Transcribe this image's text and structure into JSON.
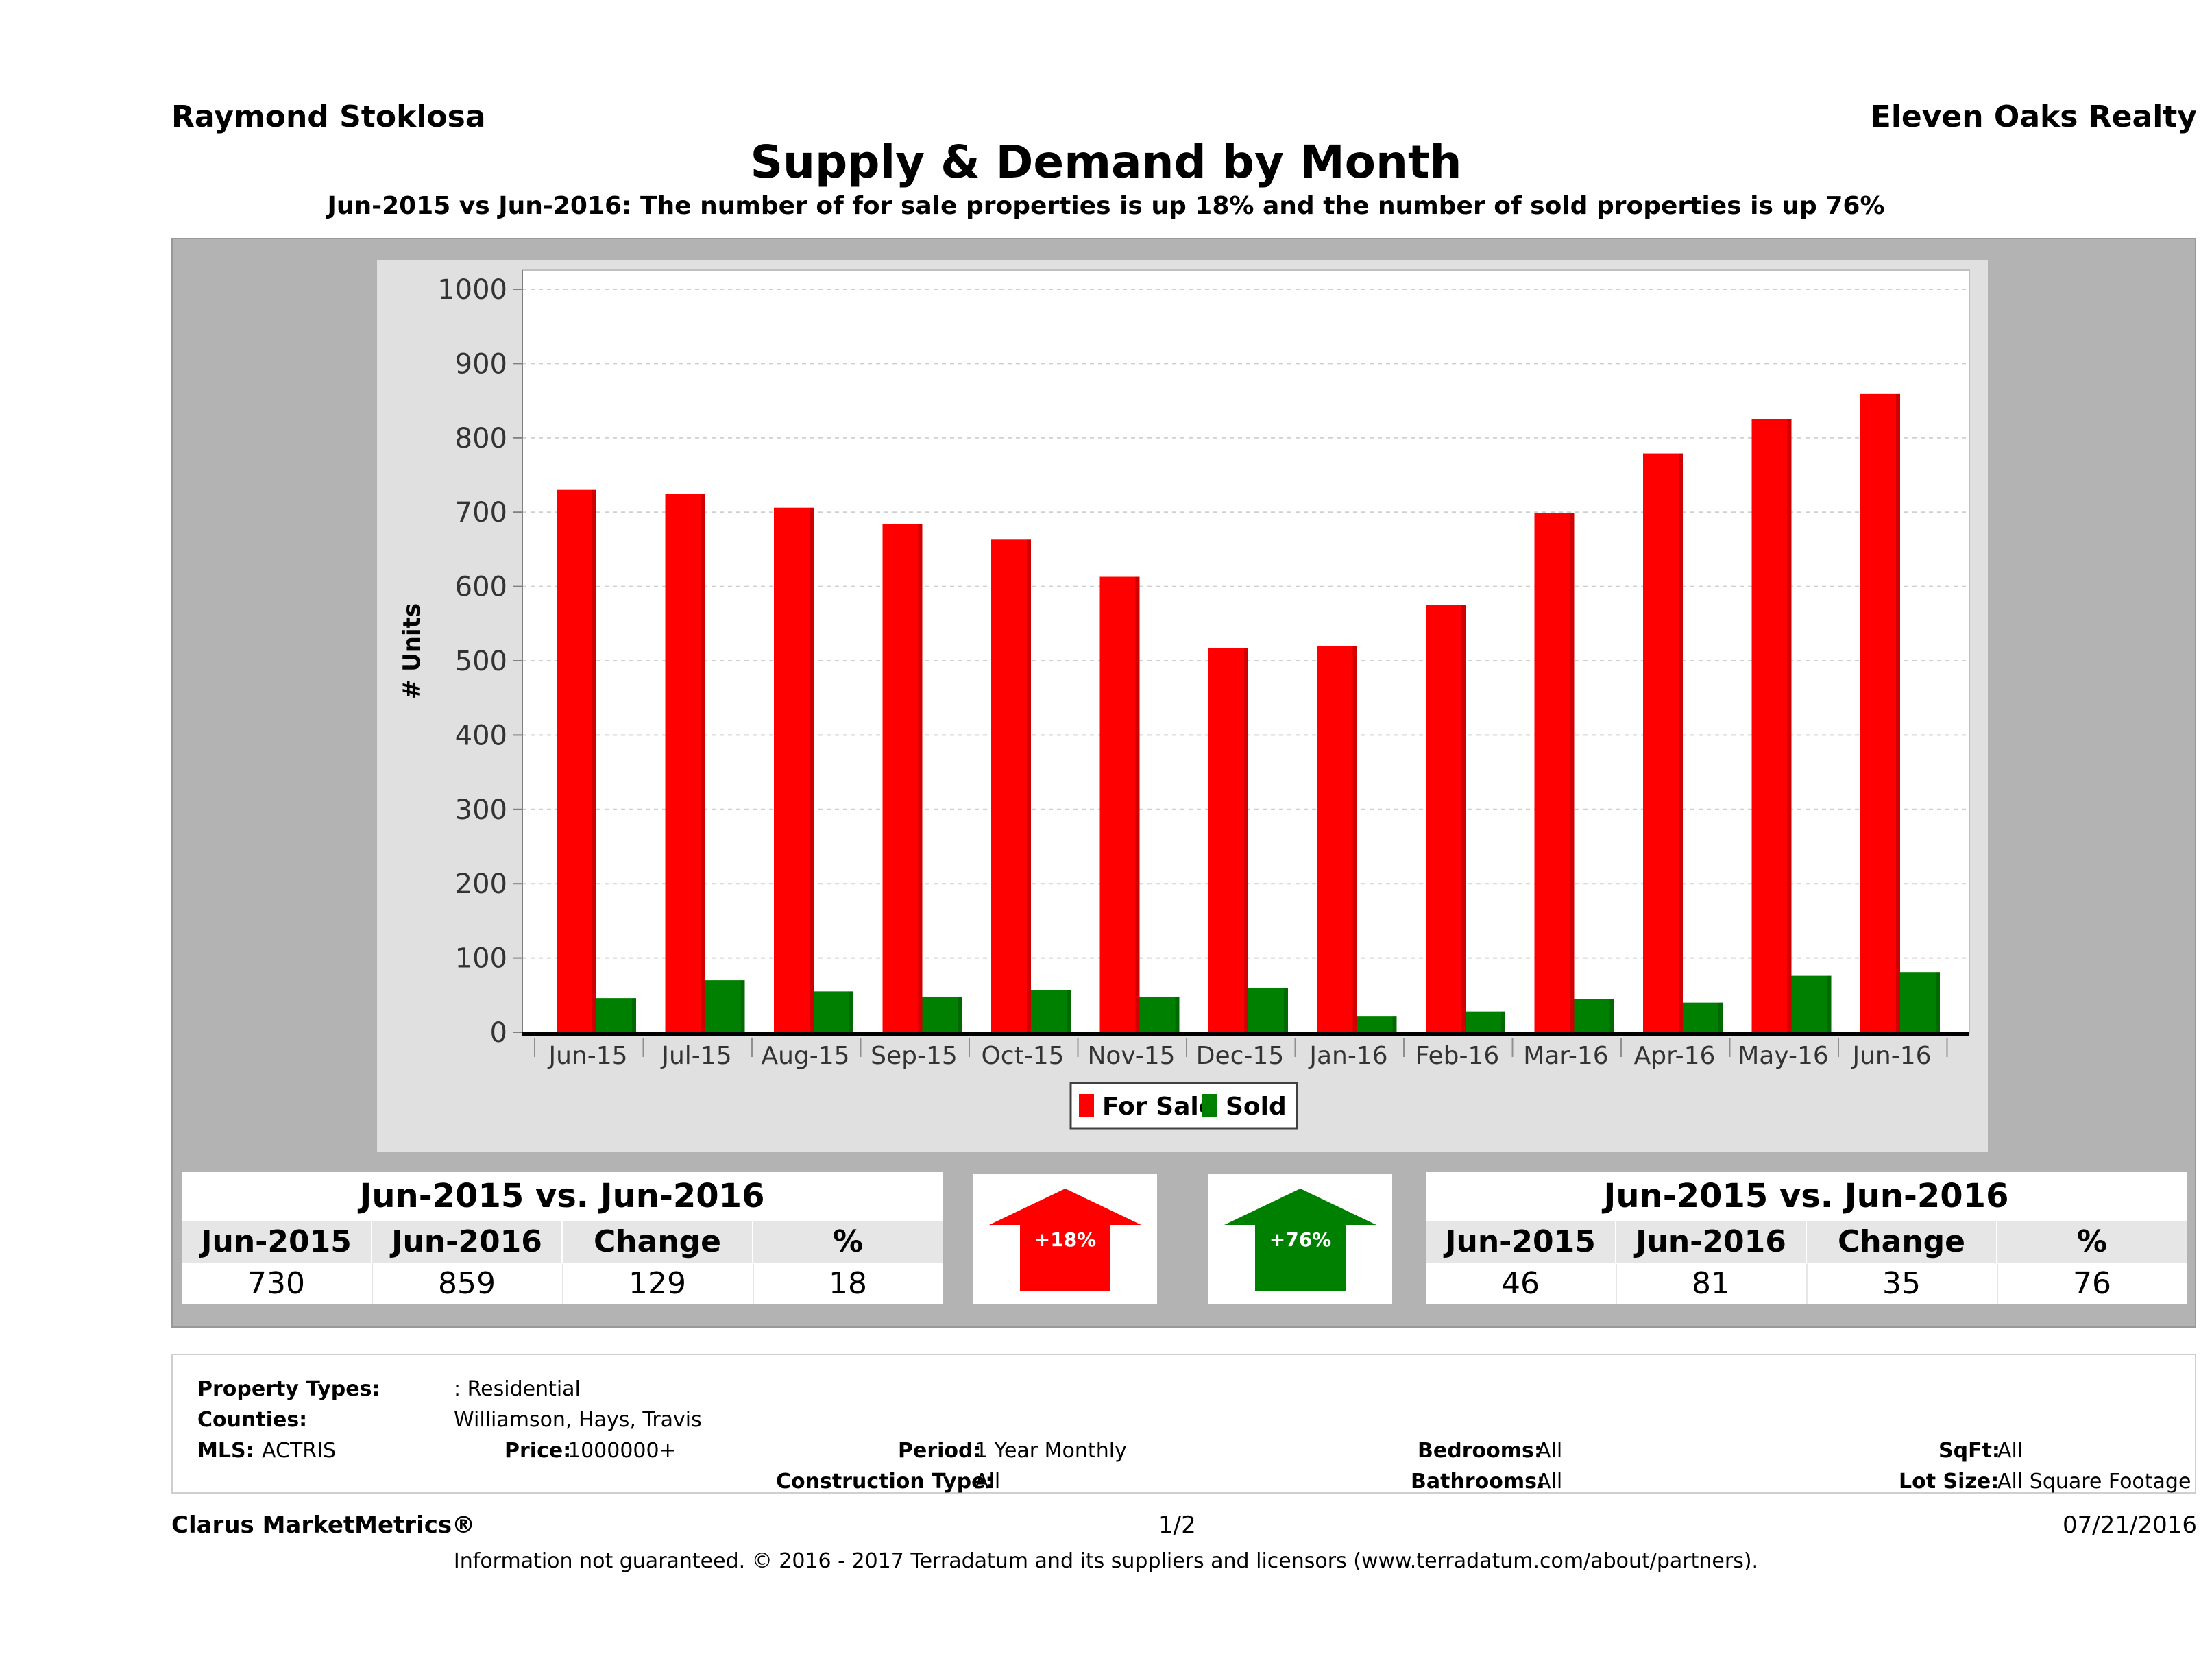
{
  "header": {
    "agent": "Raymond Stoklosa",
    "brokerage": "Eleven Oaks Realty",
    "title": "Supply & Demand by Month",
    "subtitle": "Jun-2015 vs Jun-2016: The number of for sale properties is up 18% and the number of sold properties is up 76%"
  },
  "chart_data": {
    "type": "bar",
    "title": "Supply & Demand by Month",
    "ylabel": "# Units",
    "ylim": [
      0,
      1000
    ],
    "yticks": [
      0,
      100,
      200,
      300,
      400,
      500,
      600,
      700,
      800,
      900,
      1000
    ],
    "grid": true,
    "legend_position": "bottom",
    "categories": [
      "Jun-15",
      "Jul-15",
      "Aug-15",
      "Sep-15",
      "Oct-15",
      "Nov-15",
      "Dec-15",
      "Jan-16",
      "Feb-16",
      "Mar-16",
      "Apr-16",
      "May-16",
      "Jun-16"
    ],
    "series": [
      {
        "name": "For Sale",
        "color": "#ff0000",
        "values": [
          730,
          725,
          706,
          684,
          663,
          613,
          517,
          520,
          575,
          699,
          779,
          825,
          859
        ]
      },
      {
        "name": "Sold",
        "color": "#008000",
        "values": [
          46,
          70,
          55,
          48,
          57,
          48,
          60,
          22,
          28,
          45,
          40,
          76,
          81
        ]
      }
    ]
  },
  "stats_for_sale": {
    "heading": "Jun-2015 vs. Jun-2016",
    "columns": [
      "Jun-2015",
      "Jun-2016",
      "Change",
      "%"
    ],
    "values": [
      "730",
      "859",
      "129",
      "18"
    ],
    "arrow_label": "+18%",
    "arrow_color": "#ff0000"
  },
  "stats_sold": {
    "heading": "Jun-2015 vs. Jun-2016",
    "columns": [
      "Jun-2015",
      "Jun-2016",
      "Change",
      "%"
    ],
    "values": [
      "46",
      "81",
      "35",
      "76"
    ],
    "arrow_label": "+76%",
    "arrow_color": "#008000"
  },
  "filters": {
    "property_types_label": "Property Types:",
    "property_types_value": ": Residential",
    "counties_label": "Counties:",
    "counties_value": "Williamson, Hays, Travis",
    "mls_label": "MLS:",
    "mls_value": "ACTRIS",
    "price_label": "Price:",
    "price_value": "1000000+",
    "period_label": "Period:",
    "period_value": "1 Year Monthly",
    "construction_label": "Construction Type:",
    "construction_value": "All",
    "bedrooms_label": "Bedrooms:",
    "bedrooms_value": "All",
    "bathrooms_label": "Bathrooms:",
    "bathrooms_value": "All",
    "sqft_label": "SqFt:",
    "sqft_value": "All",
    "lot_label": "Lot Size:",
    "lot_value": "All Square Footage"
  },
  "footer": {
    "brand": "Clarus MarketMetrics®",
    "page": "1/2",
    "date": "07/21/2016",
    "legal": "Information not guaranteed. © 2016 - 2017 Terradatum and its suppliers and licensors (www.terradatum.com/about/partners)."
  }
}
